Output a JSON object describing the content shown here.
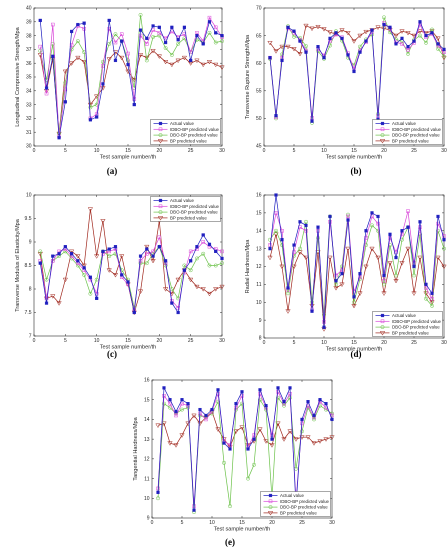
{
  "chart_data": [
    {
      "type": "line",
      "panel_label": "(a)",
      "xlabel": "Test sample number/th",
      "ylabel": "Longitudinal Compressive Strength/Mpa",
      "xlim": [
        0,
        30
      ],
      "ylim": [
        30,
        40
      ],
      "xticks": [
        "0",
        "5",
        "10",
        "15",
        "20",
        "25",
        "30"
      ],
      "yticks": [
        "30",
        "31",
        "32",
        "33",
        "34",
        "35",
        "36",
        "37",
        "38",
        "39",
        "40"
      ],
      "legend_position": "bottom-right",
      "x": [
        1,
        2,
        3,
        4,
        5,
        6,
        7,
        8,
        9,
        10,
        11,
        12,
        13,
        14,
        15,
        16,
        17,
        18,
        19,
        20,
        21,
        22,
        23,
        24,
        25,
        26,
        27,
        28,
        29,
        30
      ],
      "series": [
        {
          "name": "Actual value",
          "color": "#1f1fbf",
          "marker": "square",
          "values": [
            39.1,
            34.2,
            36.5,
            30.6,
            33.2,
            38.3,
            38.8,
            38.9,
            31.9,
            32.1,
            34.5,
            39.1,
            36.2,
            37.6,
            35.9,
            33.0,
            38.4,
            37.8,
            38.7,
            38.6,
            37.5,
            38.6,
            37.7,
            38.6,
            36.2,
            38.0,
            37.4,
            39.0,
            38.2,
            38.0
          ]
        },
        {
          "name": "IDBO-BP predicted value",
          "color": "#d946d9",
          "marker": "square-open",
          "values": [
            37.2,
            33.8,
            38.8,
            30.7,
            34.1,
            37.3,
            38.7,
            38.5,
            32.0,
            32.3,
            35.8,
            38.5,
            37.5,
            38.1,
            36.7,
            33.4,
            38.0,
            37.4,
            38.4,
            38.2,
            37.8,
            38.3,
            37.9,
            38.1,
            36.8,
            38.2,
            37.6,
            39.3,
            38.6,
            37.9
          ]
        },
        {
          "name": "DBO-BP predicted value",
          "color": "#6cc24a",
          "marker": "circle-open",
          "values": [
            36.9,
            34.8,
            37.4,
            30.9,
            34.6,
            37.0,
            37.6,
            36.8,
            32.8,
            33.0,
            36.1,
            37.4,
            38.1,
            37.6,
            36.2,
            34.2,
            39.5,
            36.2,
            37.9,
            38.0,
            37.1,
            36.6,
            37.4,
            37.8,
            36.8,
            37.7,
            37.5,
            38.2,
            37.5,
            37.6
          ]
        },
        {
          "name": "BP predicted value",
          "color": "#a0281e",
          "marker": "triangle-down",
          "values": [
            36.6,
            34.0,
            36.3,
            30.9,
            35.4,
            36.0,
            36.4,
            36.1,
            33.0,
            33.6,
            34.2,
            36.3,
            36.8,
            36.4,
            35.4,
            34.8,
            36.6,
            36.4,
            36.9,
            36.5,
            36.1,
            35.9,
            36.2,
            36.4,
            36.0,
            36.2,
            35.9,
            36.1,
            35.9,
            35.7
          ]
        }
      ]
    },
    {
      "type": "line",
      "panel_label": "(b)",
      "xlabel": "Test sample number/th",
      "ylabel": "Transverse Rupture Strength/Mpa",
      "xlim": [
        0,
        30
      ],
      "ylim": [
        45,
        70
      ],
      "xticks": [
        "0",
        "5",
        "10",
        "15",
        "20",
        "25",
        "30"
      ],
      "yticks": [
        "45",
        "50",
        "55",
        "60",
        "65",
        "70"
      ],
      "legend_position": "bottom-right",
      "x": [
        1,
        2,
        3,
        4,
        5,
        6,
        7,
        8,
        9,
        10,
        11,
        12,
        13,
        14,
        15,
        16,
        17,
        18,
        19,
        20,
        21,
        22,
        23,
        24,
        25,
        26,
        27,
        28,
        29,
        30
      ],
      "series": [
        {
          "name": "Actual value",
          "color": "#1f1fbf",
          "marker": "square",
          "values": [
            61.0,
            50.5,
            60.5,
            66.5,
            65.8,
            64.0,
            62.0,
            49.5,
            63.0,
            61.0,
            64.5,
            65.5,
            64.5,
            61.5,
            58.5,
            62.0,
            64.0,
            66.0,
            49.8,
            67.0,
            66.5,
            63.5,
            64.5,
            63.0,
            64.0,
            67.5,
            65.0,
            65.5,
            63.5,
            62.5
          ]
        },
        {
          "name": "IDBO-BP predicted value",
          "color": "#d946d9",
          "marker": "square-open",
          "values": [
            61.0,
            50.2,
            61.0,
            66.3,
            65.5,
            64.2,
            62.3,
            50.1,
            62.6,
            61.4,
            64.0,
            65.2,
            64.7,
            61.8,
            59.0,
            62.3,
            63.8,
            65.7,
            50.4,
            67.3,
            66.2,
            63.8,
            63.5,
            62.4,
            63.7,
            67.0,
            64.7,
            65.3,
            63.2,
            62.0
          ]
        },
        {
          "name": "DBO-BP predicted value",
          "color": "#6cc24a",
          "marker": "circle-open",
          "values": [
            60.8,
            50.0,
            61.6,
            66.7,
            64.8,
            64.6,
            63.1,
            49.2,
            62.2,
            60.8,
            63.2,
            65.8,
            64.1,
            61.0,
            59.6,
            63.0,
            64.3,
            65.2,
            50.8,
            68.3,
            65.6,
            64.3,
            64.0,
            61.7,
            64.2,
            65.0,
            63.7,
            66.1,
            62.6,
            61.2
          ]
        },
        {
          "name": "BP predicted value",
          "color": "#a0281e",
          "marker": "triangle-down",
          "values": [
            63.7,
            62.2,
            63.0,
            63.0,
            62.6,
            61.7,
            66.8,
            66.3,
            66.6,
            66.2,
            65.6,
            65.3,
            66.0,
            65.5,
            64.0,
            65.0,
            65.7,
            66.0,
            66.5,
            66.3,
            66.0,
            65.0,
            65.8,
            65.5,
            65.0,
            65.8,
            65.5,
            65.8,
            64.5,
            61.0
          ]
        }
      ]
    },
    {
      "type": "line",
      "panel_label": "(c)",
      "xlabel": "Test sample number/th",
      "ylabel": "Transverse Modulus of Elasticity/Mpa",
      "xlim": [
        0,
        30
      ],
      "ylim": [
        7,
        10
      ],
      "xticks": [
        "0",
        "5",
        "10",
        "15",
        "20",
        "25",
        "30"
      ],
      "yticks": [
        "7",
        "7.5",
        "8",
        "8.5",
        "9",
        "9.5",
        "10"
      ],
      "legend_position": "top-right",
      "x": [
        1,
        2,
        3,
        4,
        5,
        6,
        7,
        8,
        9,
        10,
        11,
        12,
        13,
        14,
        15,
        16,
        17,
        18,
        19,
        20,
        21,
        22,
        23,
        24,
        25,
        26,
        27,
        28,
        29,
        30
      ],
      "series": [
        {
          "name": "Actual value",
          "color": "#1f1fbf",
          "marker": "square",
          "values": [
            8.55,
            7.7,
            8.7,
            8.75,
            8.9,
            8.75,
            8.6,
            8.45,
            8.25,
            7.8,
            8.8,
            8.85,
            8.9,
            8.3,
            8.15,
            7.5,
            8.7,
            8.85,
            8.7,
            8.9,
            8.6,
            7.7,
            7.5,
            8.4,
            8.6,
            8.9,
            9.15,
            8.95,
            8.8,
            8.65
          ]
        },
        {
          "name": "IDBO-BP predicted value",
          "color": "#d946d9",
          "marker": "square-open",
          "values": [
            8.6,
            7.8,
            8.6,
            8.8,
            8.85,
            8.7,
            8.55,
            8.4,
            8.2,
            7.9,
            8.75,
            8.8,
            8.85,
            8.25,
            8.1,
            7.55,
            8.6,
            8.75,
            8.8,
            9.1,
            8.55,
            7.75,
            7.6,
            8.35,
            8.8,
            8.85,
            9.0,
            8.9,
            8.85,
            8.8
          ]
        },
        {
          "name": "DBO-BP predicted value",
          "color": "#6cc24a",
          "marker": "circle-open",
          "values": [
            8.8,
            8.2,
            8.6,
            8.7,
            8.8,
            8.65,
            8.5,
            8.3,
            7.9,
            8.2,
            8.8,
            8.7,
            8.75,
            8.4,
            8.2,
            7.6,
            8.55,
            8.55,
            8.75,
            8.9,
            8.5,
            8.0,
            7.8,
            8.5,
            8.4,
            8.65,
            8.75,
            8.5,
            8.5,
            8.55
          ]
        },
        {
          "name": "BP predicted value",
          "color": "#a0281e",
          "marker": "triangle-down",
          "values": [
            8.75,
            7.8,
            7.85,
            7.7,
            8.2,
            8.8,
            8.7,
            8.5,
            9.7,
            8.7,
            9.45,
            8.4,
            8.3,
            8.7,
            8.1,
            7.5,
            7.95,
            8.9,
            8.6,
            9.45,
            8.0,
            7.9,
            8.2,
            8.4,
            8.2,
            8.05,
            8.0,
            7.9,
            8.0,
            8.05
          ]
        }
      ]
    },
    {
      "type": "line",
      "panel_label": "(d)",
      "xlabel": "Test sample number/th",
      "ylabel": "Radial Hardness/Mpa",
      "xlim": [
        0,
        30
      ],
      "ylim": [
        8,
        16
      ],
      "xticks": [
        "0",
        "5",
        "10",
        "15",
        "20",
        "25",
        "30"
      ],
      "yticks": [
        "8",
        "9",
        "10",
        "11",
        "12",
        "13",
        "14",
        "15",
        "16"
      ],
      "legend_position": "bottom-right",
      "x": [
        1,
        2,
        3,
        4,
        5,
        6,
        7,
        8,
        9,
        10,
        11,
        12,
        13,
        14,
        15,
        16,
        17,
        18,
        19,
        20,
        21,
        22,
        23,
        24,
        25,
        26,
        27,
        28,
        29,
        30
      ],
      "series": [
        {
          "name": "Actual value",
          "color": "#1f1fbf",
          "marker": "square",
          "values": [
            13.0,
            16.0,
            13.5,
            10.8,
            13.2,
            14.5,
            14.3,
            9.5,
            14.2,
            8.6,
            14.8,
            11.2,
            11.6,
            14.6,
            10.3,
            11.6,
            14.0,
            15.0,
            14.8,
            11.5,
            13.8,
            12.5,
            14.0,
            14.2,
            12.0,
            14.5,
            11.0,
            10.5,
            14.8,
            13.5
          ]
        },
        {
          "name": "IDBO-BP predicted value",
          "color": "#d946d9",
          "marker": "square-open",
          "values": [
            13.2,
            15.0,
            14.0,
            10.7,
            12.8,
            14.2,
            14.0,
            9.6,
            14.0,
            8.9,
            14.5,
            11.5,
            11.8,
            14.8,
            10.6,
            11.4,
            13.6,
            14.8,
            14.4,
            11.2,
            13.6,
            12.8,
            13.8,
            15.1,
            12.2,
            14.2,
            10.8,
            10.2,
            14.4,
            13.7
          ]
        },
        {
          "name": "DBO-BP predicted value",
          "color": "#6cc24a",
          "marker": "circle-open",
          "values": [
            13.5,
            14.0,
            13.2,
            10.5,
            12.6,
            13.0,
            14.5,
            10.0,
            13.6,
            9.3,
            14.8,
            11.0,
            12.0,
            14.9,
            10.0,
            11.3,
            13.2,
            14.3,
            14.0,
            11.0,
            13.2,
            11.5,
            13.5,
            14.2,
            11.5,
            13.8,
            10.2,
            9.8,
            14.0,
            13.0
          ]
        },
        {
          "name": "BP predicted value",
          "color": "#a0281e",
          "marker": "triangle-down",
          "values": [
            12.5,
            13.8,
            12.0,
            9.5,
            12.0,
            12.8,
            12.5,
            9.8,
            12.8,
            8.5,
            12.5,
            10.8,
            11.0,
            13.0,
            9.8,
            10.5,
            12.0,
            13.0,
            12.5,
            10.5,
            12.2,
            11.2,
            12.2,
            13.0,
            10.5,
            12.5,
            10.5,
            10.0,
            12.5,
            12.0
          ]
        }
      ]
    },
    {
      "type": "line",
      "panel_label": "(e)",
      "xlabel": "Test sample number/th",
      "ylabel": "Tangential Hardness/Mpa",
      "xlim": [
        0,
        30
      ],
      "ylim": [
        9,
        16
      ],
      "xticks": [
        "0",
        "5",
        "10",
        "15",
        "20",
        "25",
        "30"
      ],
      "yticks": [
        "9",
        "10",
        "11",
        "12",
        "13",
        "14",
        "15",
        "16"
      ],
      "legend_position": "bottom-right",
      "x": [
        1,
        2,
        3,
        4,
        5,
        6,
        7,
        8,
        9,
        10,
        11,
        12,
        13,
        14,
        15,
        16,
        17,
        18,
        19,
        20,
        21,
        22,
        23,
        24,
        25,
        26,
        27,
        28,
        29,
        30
      ],
      "series": [
        {
          "name": "Actual value",
          "color": "#1f1fbf",
          "marker": "square",
          "values": [
            10.3,
            15.6,
            15.0,
            14.4,
            15.0,
            14.8,
            9.4,
            14.5,
            14.2,
            14.5,
            15.5,
            12.8,
            12.5,
            14.8,
            15.4,
            12.5,
            13.0,
            15.5,
            14.7,
            13.0,
            15.6,
            14.9,
            15.6,
            9.6,
            14.0,
            14.9,
            14.2,
            15.0,
            14.8,
            14.0
          ]
        },
        {
          "name": "IDBO-BP predicted value",
          "color": "#d946d9",
          "marker": "square-open",
          "values": [
            10.5,
            15.2,
            14.8,
            14.2,
            14.8,
            14.7,
            9.6,
            14.3,
            14.0,
            14.4,
            15.3,
            12.9,
            12.7,
            14.6,
            15.2,
            12.6,
            13.2,
            15.3,
            14.6,
            13.2,
            15.4,
            14.8,
            15.3,
            9.9,
            13.8,
            14.7,
            14.1,
            14.9,
            14.6,
            14.2
          ]
        },
        {
          "name": "DBO-BP predicted value",
          "color": "#6cc24a",
          "marker": "circle-open",
          "values": [
            10.0,
            14.8,
            14.6,
            14.3,
            14.5,
            14.6,
            9.3,
            14.2,
            14.1,
            14.3,
            14.9,
            11.8,
            9.6,
            14.5,
            14.8,
            11.0,
            11.7,
            15.0,
            14.5,
            10.0,
            15.1,
            14.7,
            15.1,
            11.5,
            13.4,
            14.6,
            14.0,
            14.7,
            14.5,
            14.3
          ]
        },
        {
          "name": "BP predicted value",
          "color": "#a0281e",
          "marker": "triangle-down",
          "values": [
            13.7,
            13.8,
            12.8,
            12.7,
            13.2,
            13.8,
            14.2,
            13.8,
            14.1,
            14.4,
            13.5,
            13.0,
            12.6,
            13.4,
            13.6,
            12.7,
            12.9,
            13.5,
            12.9,
            12.7,
            13.8,
            13.0,
            13.4,
            13.0,
            13.1,
            13.1,
            12.8,
            12.9,
            13.0,
            13.1
          ]
        }
      ]
    }
  ]
}
